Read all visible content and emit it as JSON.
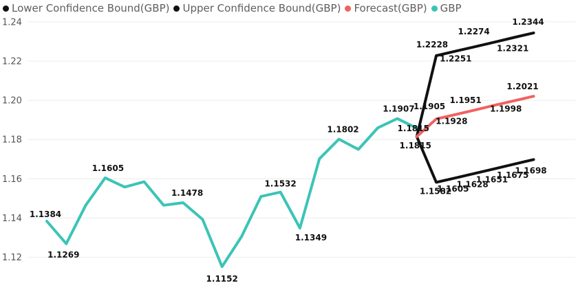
{
  "chart_data": {
    "type": "line",
    "title": "",
    "xlabel": "",
    "ylabel": "",
    "ylim": [
      1.11,
      1.24
    ],
    "yticks": [
      "1.12",
      "1.14",
      "1.16",
      "1.18",
      "1.20",
      "1.22",
      "1.24"
    ],
    "grid": true,
    "legend_position": "top-left",
    "x": [
      0,
      1,
      2,
      3,
      4,
      5,
      6,
      7,
      8,
      9,
      10,
      11,
      12,
      13,
      14,
      15,
      16,
      17,
      18,
      19,
      20,
      21,
      22,
      23,
      24,
      25
    ],
    "series": [
      {
        "name": "Lower Confidence Bound(GBP)",
        "color": "#111111",
        "x": [
          19,
          20,
          21,
          22,
          23,
          24,
          25
        ],
        "values": [
          1.1815,
          1.1582,
          1.1605,
          1.1628,
          1.1651,
          1.1675,
          1.1698
        ],
        "labels": [
          "1.1815",
          "1.1582",
          "1.1605",
          "1.1628",
          "1.1651",
          "1.1675",
          "1.1698"
        ]
      },
      {
        "name": "Upper Confidence Bound(GBP)",
        "color": "#111111",
        "x": [
          19,
          20,
          21,
          22,
          23,
          24,
          25
        ],
        "values": [
          1.1815,
          1.2228,
          1.2251,
          1.2274,
          1.2297,
          1.2321,
          1.2344
        ],
        "labels": [
          "",
          "1.2228",
          "1.2251",
          "1.2274",
          "",
          "1.2321",
          "1.2344"
        ]
      },
      {
        "name": "Forecast(GBP)",
        "color": "#f0625f",
        "x": [
          19,
          20,
          21,
          22,
          23,
          24,
          25
        ],
        "values": [
          1.1815,
          1.1905,
          1.1928,
          1.1951,
          1.1975,
          1.1998,
          1.2021
        ],
        "labels": [
          "1.1815",
          "1.1905",
          "1.1928",
          "1.1951",
          "",
          "1.1998",
          "1.2021"
        ]
      },
      {
        "name": "GBP",
        "color": "#3bc4b6",
        "x": [
          0,
          1,
          2,
          3,
          4,
          5,
          6,
          7,
          8,
          9,
          10,
          11,
          12,
          13,
          14,
          15,
          16,
          17,
          18,
          19
        ],
        "values": [
          1.1384,
          1.1269,
          1.1465,
          1.1605,
          1.1558,
          1.1585,
          1.1465,
          1.1478,
          1.1393,
          1.1152,
          1.1305,
          1.151,
          1.1532,
          1.1349,
          1.1702,
          1.1802,
          1.175,
          1.186,
          1.1907,
          1.1858
        ],
        "labels": [
          "1.1384",
          "1.1269",
          "",
          "1.1605",
          "",
          "",
          "",
          "1.1478",
          "",
          "1.1152",
          "",
          "",
          "1.1532",
          "1.1349",
          "",
          "1.1802",
          "",
          "",
          "1.1907",
          ""
        ]
      }
    ]
  },
  "legend": {
    "items": [
      {
        "label": "Lower Confidence Bound(GBP)",
        "color": "#111111"
      },
      {
        "label": "Upper Confidence Bound(GBP)",
        "color": "#111111"
      },
      {
        "label": "Forecast(GBP)",
        "color": "#f0625f"
      },
      {
        "label": "GBP",
        "color": "#3bc4b6"
      }
    ]
  }
}
